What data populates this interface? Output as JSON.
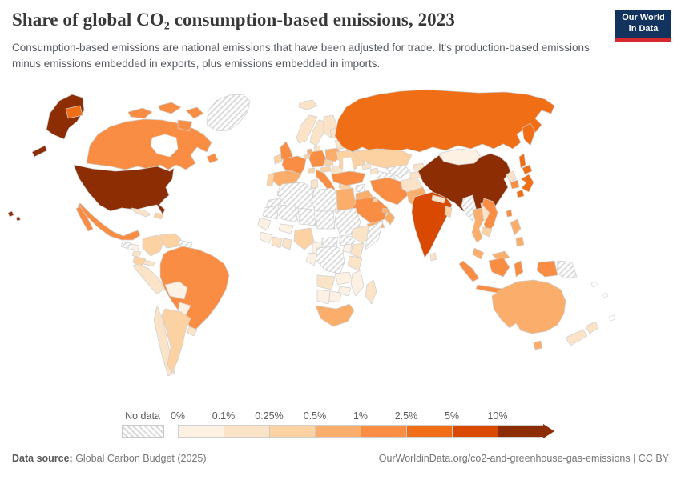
{
  "header": {
    "title": "Share of global CO₂ consumption-based emissions, 2023",
    "subtitle": "Consumption-based emissions are national emissions that have been adjusted for trade. It's production-based emissions minus emissions embedded in exports, plus emissions embedded in imports.",
    "logo_line1": "Our World",
    "logo_line2": "in Data",
    "logo_bg": "#12335e",
    "logo_accent": "#d7282f"
  },
  "legend": {
    "no_data_label": "No data",
    "ticks": [
      "0%",
      "0.1%",
      "0.25%",
      "0.5%",
      "1%",
      "2.5%",
      "5%",
      "10%"
    ],
    "colors": [
      "#fdf1e3",
      "#fbe3c8",
      "#fcd2a2",
      "#fbae6c",
      "#f98d43",
      "#f06e16",
      "#d94901",
      "#8c2d04"
    ]
  },
  "footer": {
    "source_label": "Data source:",
    "source_value": " Global Carbon Budget (2025)",
    "attribution": "OurWorldinData.org/co2-and-greenhouse-gas-emissions | CC BY"
  },
  "chart_data": {
    "type": "choropleth",
    "title": "Share of global CO₂ consumption-based emissions, 2023",
    "year": 2023,
    "unit": "% of global total",
    "bins": [
      "0-0.1%",
      "0.1-0.25%",
      "0.25-0.5%",
      "0.5-1%",
      "1-2.5%",
      "2.5-5%",
      "5-10%",
      ">10%"
    ],
    "bin_colors": [
      "#fdf1e3",
      "#fbe3c8",
      "#fcd2a2",
      "#fbae6c",
      "#f98d43",
      "#f06e16",
      "#d94901",
      "#8c2d04"
    ],
    "no_data_style": "gray diagonal hatch",
    "countries": [
      {
        "id": "united-states",
        "name": "United States",
        "bin": 7
      },
      {
        "id": "china",
        "name": "China",
        "bin": 7
      },
      {
        "id": "india",
        "name": "India",
        "bin": 6
      },
      {
        "id": "russia",
        "name": "Russia",
        "bin": 5
      },
      {
        "id": "japan",
        "name": "Japan",
        "bin": 5
      },
      {
        "id": "canada",
        "name": "Canada",
        "bin": 4
      },
      {
        "id": "mexico",
        "name": "Mexico",
        "bin": 4
      },
      {
        "id": "brazil",
        "name": "Brazil",
        "bin": 4
      },
      {
        "id": "united-kingdom",
        "name": "United Kingdom",
        "bin": 4
      },
      {
        "id": "france",
        "name": "France",
        "bin": 4
      },
      {
        "id": "germany",
        "name": "Germany",
        "bin": 4
      },
      {
        "id": "italy",
        "name": "Italy",
        "bin": 4
      },
      {
        "id": "turkey",
        "name": "Turkey",
        "bin": 4
      },
      {
        "id": "saudi-arabia",
        "name": "Saudi Arabia",
        "bin": 4
      },
      {
        "id": "iran",
        "name": "Iran",
        "bin": 4
      },
      {
        "id": "south-korea",
        "name": "South Korea",
        "bin": 4
      },
      {
        "id": "vietnam",
        "name": "Vietnam",
        "bin": 4
      },
      {
        "id": "indonesia",
        "name": "Indonesia",
        "bin": 4
      },
      {
        "id": "taiwan",
        "name": "Taiwan",
        "bin": 4
      },
      {
        "id": "spain",
        "name": "Spain",
        "bin": 3
      },
      {
        "id": "poland",
        "name": "Poland",
        "bin": 3
      },
      {
        "id": "netherlands",
        "name": "Netherlands",
        "bin": 3
      },
      {
        "id": "egypt",
        "name": "Egypt",
        "bin": 3
      },
      {
        "id": "south-africa",
        "name": "South Africa",
        "bin": 3
      },
      {
        "id": "iraq",
        "name": "Iraq",
        "bin": 3
      },
      {
        "id": "oman",
        "name": "Oman",
        "bin": 3
      },
      {
        "id": "united-arab-emirates",
        "name": "United Arab Emirates",
        "bin": 3
      },
      {
        "id": "pakistan",
        "name": "Pakistan",
        "bin": 3
      },
      {
        "id": "thailand",
        "name": "Thailand",
        "bin": 3
      },
      {
        "id": "malaysia",
        "name": "Malaysia",
        "bin": 3
      },
      {
        "id": "philippines",
        "name": "Philippines",
        "bin": 3
      },
      {
        "id": "australia",
        "name": "Australia",
        "bin": 3
      },
      {
        "id": "yemen",
        "name": "Yemen",
        "bin": 3
      },
      {
        "id": "ireland",
        "name": "Ireland",
        "bin": 2
      },
      {
        "id": "portugal",
        "name": "Portugal",
        "bin": 2
      },
      {
        "id": "belgium",
        "name": "Belgium",
        "bin": 2
      },
      {
        "id": "switzerland",
        "name": "Switzerland",
        "bin": 2
      },
      {
        "id": "austria",
        "name": "Austria",
        "bin": 2
      },
      {
        "id": "czechia",
        "name": "Czechia",
        "bin": 2
      },
      {
        "id": "greece",
        "name": "Greece",
        "bin": 2
      },
      {
        "id": "romania",
        "name": "Romania",
        "bin": 2
      },
      {
        "id": "ukraine",
        "name": "Ukraine",
        "bin": 2
      },
      {
        "id": "kazakhstan",
        "name": "Kazakhstan",
        "bin": 2
      },
      {
        "id": "colombia",
        "name": "Colombia",
        "bin": 2
      },
      {
        "id": "venezuela",
        "name": "Venezuela",
        "bin": 2
      },
      {
        "id": "ecuador",
        "name": "Ecuador",
        "bin": 2
      },
      {
        "id": "argentina",
        "name": "Argentina",
        "bin": 2
      },
      {
        "id": "dominican-republic",
        "name": "Dominican Republic",
        "bin": 2
      },
      {
        "id": "bangladesh",
        "name": "Bangladesh",
        "bin": 2
      },
      {
        "id": "cambodia",
        "name": "Cambodia",
        "bin": 2
      },
      {
        "id": "israel",
        "name": "Israel",
        "bin": 2
      },
      {
        "id": "kuwait",
        "name": "Kuwait",
        "bin": 2
      },
      {
        "id": "nigeria",
        "name": "Nigeria",
        "bin": 2
      },
      {
        "id": "norway",
        "name": "Norway",
        "bin": 1
      },
      {
        "id": "sweden",
        "name": "Sweden",
        "bin": 1
      },
      {
        "id": "finland",
        "name": "Finland",
        "bin": 1
      },
      {
        "id": "denmark",
        "name": "Denmark",
        "bin": 1
      },
      {
        "id": "iceland",
        "name": "Iceland",
        "bin": 1
      },
      {
        "id": "hungary",
        "name": "Hungary",
        "bin": 1
      },
      {
        "id": "bulgaria",
        "name": "Bulgaria",
        "bin": 1
      },
      {
        "id": "serbia",
        "name": "Serbia",
        "bin": 1
      },
      {
        "id": "belarus",
        "name": "Belarus",
        "bin": 1
      },
      {
        "id": "lithuania",
        "name": "Lithuania",
        "bin": 1
      },
      {
        "id": "morocco",
        "name": "Morocco",
        "bin": 1
      },
      {
        "id": "tunisia",
        "name": "Tunisia",
        "bin": 1
      },
      {
        "id": "ethiopia",
        "name": "Ethiopia",
        "bin": 1
      },
      {
        "id": "kenya",
        "name": "Kenya",
        "bin": 1
      },
      {
        "id": "tanzania",
        "name": "Tanzania",
        "bin": 1
      },
      {
        "id": "angola",
        "name": "Angola",
        "bin": 1
      },
      {
        "id": "madagascar",
        "name": "Madagascar",
        "bin": 1
      },
      {
        "id": "ivory-coast",
        "name": "Cote d'Ivoire",
        "bin": 1
      },
      {
        "id": "ghana",
        "name": "Ghana",
        "bin": 1
      },
      {
        "id": "peru",
        "name": "Peru",
        "bin": 1
      },
      {
        "id": "chile",
        "name": "Chile",
        "bin": 1
      },
      {
        "id": "uruguay",
        "name": "Uruguay",
        "bin": 1
      },
      {
        "id": "cuba",
        "name": "Cuba",
        "bin": 1
      },
      {
        "id": "nicaragua",
        "name": "Nicaragua",
        "bin": 1
      },
      {
        "id": "panama",
        "name": "Panama",
        "bin": 1
      },
      {
        "id": "new-zealand",
        "name": "New Zealand",
        "bin": 1
      },
      {
        "id": "sri-lanka",
        "name": "Sri Lanka",
        "bin": 1
      },
      {
        "id": "nepal",
        "name": "Nepal",
        "bin": 1
      },
      {
        "id": "laos",
        "name": "Laos",
        "bin": 1
      },
      {
        "id": "north-korea",
        "name": "North Korea",
        "bin": 1
      },
      {
        "id": "kyrgyzstan",
        "name": "Kyrgyzstan",
        "bin": 1
      },
      {
        "id": "tajikistan",
        "name": "Tajikistan",
        "bin": 1
      },
      {
        "id": "georgia",
        "name": "Georgia",
        "bin": 1
      },
      {
        "id": "azerbaijan",
        "name": "Azerbaijan",
        "bin": 1
      },
      {
        "id": "afghanistan",
        "name": "Afghanistan",
        "bin": 1
      },
      {
        "id": "bolivia",
        "name": "Bolivia",
        "bin": 0
      },
      {
        "id": "paraguay",
        "name": "Paraguay",
        "bin": 0
      },
      {
        "id": "honduras",
        "name": "Honduras",
        "bin": 0
      },
      {
        "id": "mongolia",
        "name": "Mongolia",
        "bin": 0
      },
      {
        "id": "senegal",
        "name": "Senegal",
        "bin": 0
      },
      {
        "id": "guinea",
        "name": "Guinea",
        "bin": 0
      },
      {
        "id": "burkina-faso",
        "name": "Burkina Faso",
        "bin": 0
      },
      {
        "id": "cameroon",
        "name": "Cameroon",
        "bin": 0
      },
      {
        "id": "congo",
        "name": "Congo",
        "bin": 0
      },
      {
        "id": "uganda",
        "name": "Uganda",
        "bin": 0
      },
      {
        "id": "zambia",
        "name": "Zambia",
        "bin": 0
      },
      {
        "id": "zimbabwe",
        "name": "Zimbabwe",
        "bin": 0
      },
      {
        "id": "mozambique",
        "name": "Mozambique",
        "bin": 0
      },
      {
        "id": "namibia",
        "name": "Namibia",
        "bin": 0
      },
      {
        "id": "botswana",
        "name": "Botswana",
        "bin": 0
      },
      {
        "id": "greenland",
        "name": "Greenland",
        "bin": -1
      },
      {
        "id": "guatemala",
        "name": "Guatemala",
        "bin": -1
      },
      {
        "id": "guianas",
        "name": "Guyana & Suriname",
        "bin": -1
      },
      {
        "id": "algeria",
        "name": "Algeria",
        "bin": -1
      },
      {
        "id": "western-sahara",
        "name": "Western Sahara",
        "bin": -1
      },
      {
        "id": "libya",
        "name": "Libya",
        "bin": -1
      },
      {
        "id": "mauritania",
        "name": "Mauritania",
        "bin": -1
      },
      {
        "id": "mali",
        "name": "Mali",
        "bin": -1
      },
      {
        "id": "niger",
        "name": "Niger",
        "bin": -1
      },
      {
        "id": "chad",
        "name": "Chad",
        "bin": -1
      },
      {
        "id": "sudan",
        "name": "Sudan",
        "bin": -1
      },
      {
        "id": "south-sudan",
        "name": "South Sudan",
        "bin": -1
      },
      {
        "id": "central-african-republic",
        "name": "Central African Republic",
        "bin": -1
      },
      {
        "id": "somalia",
        "name": "Somalia",
        "bin": -1
      },
      {
        "id": "dr-congo",
        "name": "Democratic Republic of Congo",
        "bin": -1
      },
      {
        "id": "syria",
        "name": "Syria",
        "bin": -1
      },
      {
        "id": "turkmenistan",
        "name": "Turkmenistan",
        "bin": -1
      },
      {
        "id": "uzbekistan",
        "name": "Uzbekistan",
        "bin": -1
      },
      {
        "id": "myanmar",
        "name": "Myanmar",
        "bin": -1
      },
      {
        "id": "papua-new-guinea",
        "name": "Papua New Guinea",
        "bin": -1
      }
    ]
  }
}
